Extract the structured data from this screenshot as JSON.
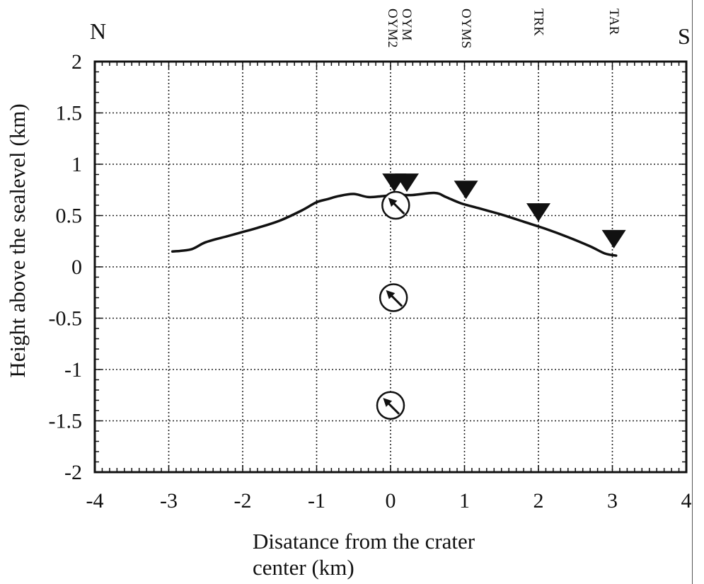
{
  "chart_data": {
    "type": "line",
    "xlabel_lines": [
      "Disatance from the crater",
      "center (km)"
    ],
    "ylabel": "Height above the sealevel (km)",
    "direction_left": "N",
    "direction_right": "S",
    "xlim": [
      -4,
      4
    ],
    "ylim": [
      -2,
      2
    ],
    "x_ticks": [
      -4,
      -3,
      -2,
      -1,
      0,
      1,
      2,
      3,
      4
    ],
    "x_tick_labels": [
      "-4",
      "-3",
      "-2",
      "-1",
      "0",
      "1",
      "2",
      "3",
      "4"
    ],
    "y_ticks": [
      2,
      1.5,
      1,
      0.5,
      0,
      -0.5,
      -1,
      -1.5,
      -2
    ],
    "y_tick_labels": [
      "2",
      "1.5",
      "1",
      "0.5",
      "0",
      "-0.5",
      "-1",
      "-1.5",
      "-2"
    ],
    "grid": true,
    "topography": {
      "x": [
        -2.95,
        -2.7,
        -2.5,
        -2.2,
        -2.0,
        -1.8,
        -1.5,
        -1.2,
        -1.0,
        -0.85,
        -0.7,
        -0.5,
        -0.3,
        -0.1,
        0.1,
        0.3,
        0.6,
        0.75,
        0.95,
        1.2,
        1.5,
        1.8,
        2.1,
        2.4,
        2.7,
        2.9,
        3.05
      ],
      "y": [
        0.15,
        0.17,
        0.24,
        0.3,
        0.34,
        0.38,
        0.45,
        0.55,
        0.63,
        0.66,
        0.69,
        0.71,
        0.68,
        0.69,
        0.7,
        0.7,
        0.72,
        0.68,
        0.62,
        0.57,
        0.51,
        0.44,
        0.37,
        0.29,
        0.2,
        0.13,
        0.11
      ]
    },
    "stations": [
      {
        "name": "OYM2",
        "x": 0.05,
        "y": 0.82
      },
      {
        "name": "OYM",
        "x": 0.22,
        "y": 0.82
      },
      {
        "name": "OYMS",
        "x": 1.02,
        "y": 0.75
      },
      {
        "name": "TRK",
        "x": 2.0,
        "y": 0.53
      },
      {
        "name": "TAR",
        "x": 3.02,
        "y": 0.27
      }
    ],
    "station_label_columns": [
      {
        "x": 0.12,
        "lines": [
          "OYM",
          "OYM2"
        ]
      },
      {
        "x": 1.02,
        "lines": [
          "OYMS"
        ]
      },
      {
        "x": 2.0,
        "lines": [
          "TRK"
        ]
      },
      {
        "x": 3.02,
        "lines": [
          "TAR"
        ]
      }
    ],
    "sources": [
      {
        "x": 0.07,
        "y": 0.6,
        "arrow_direction": "NW"
      },
      {
        "x": 0.04,
        "y": -0.3,
        "arrow_direction": "NW"
      },
      {
        "x": 0.0,
        "y": -1.35,
        "arrow_direction": "NW"
      }
    ]
  }
}
